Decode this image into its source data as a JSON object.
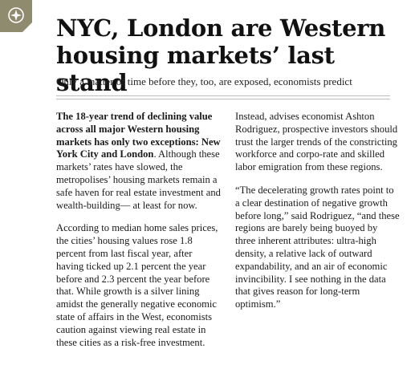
{
  "article": {
    "headline": "NYC, London are Western housing markets’ last stand",
    "subhead": "Only a matter of time before they, too, are exposed, economists predict",
    "lead_bold": "The 18-year trend of declining value across all major Western housing markets has only two exceptions: New York City and London",
    "lead_rest": ". Although these markets’ rates have slowed, the metropolises’ housing markets remain a safe haven for real estate investment and wealth-building— at least for now.",
    "paragraph_2": "According to median home sales prices, the cities’ housing values rose 1.8 percent from last fiscal year, after having ticked up 2.1 percent the year before and 2.3 percent the year before that. While growth is a silver lining amidst the generally negative economic state of affairs in the West, economists caution against viewing real estate in these cities as a risk-free investment.",
    "paragraph_3": "Instead, advises economist Ashton Rodriguez, prospective investors should trust the larger trends of the constricting workforce and corpo-rate and skilled labor emigration from these regions.",
    "paragraph_4": "“The decelerating growth rates point to a clear destination of negative growth before long,” said Rodriguez, “and these regions are barely being buoyed by three inherent attributes: ultra-high density, a relative lack of outward expandability, and an air of economic invincibility. I see nothing in the data that gives reason for long-term optimism.”"
  },
  "colors": {
    "badge": "#8f8b6e",
    "rule": "#bdbdbd"
  },
  "icons": {
    "corner": "compass-star-icon"
  }
}
